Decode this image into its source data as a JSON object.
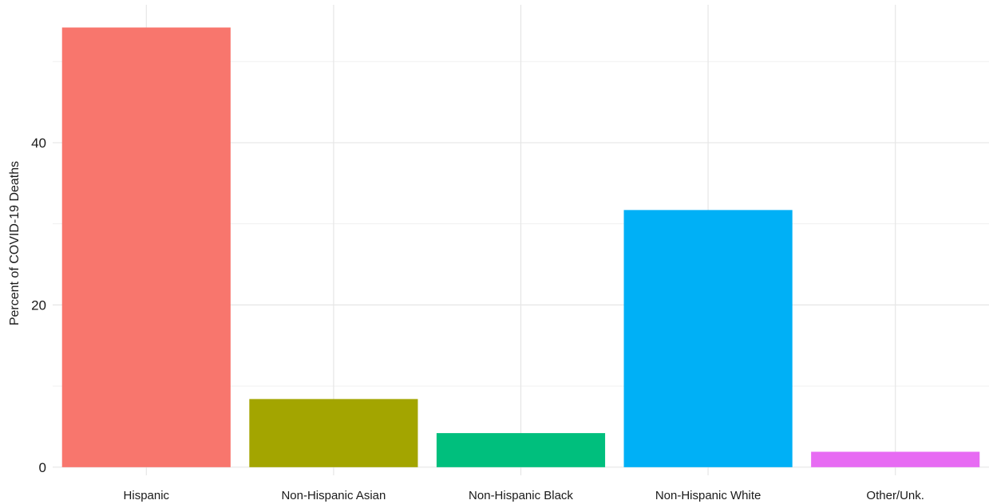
{
  "chart_data": {
    "type": "bar",
    "title": "",
    "xlabel": "",
    "ylabel": "Percent of COVID-19 Deaths",
    "ylim": [
      -1.0,
      57.0
    ],
    "yticks": [
      0,
      20,
      40
    ],
    "grid": true,
    "legend": "none",
    "categories": [
      "Hispanic",
      "Non-Hispanic Asian",
      "Non-Hispanic Black",
      "Non-Hispanic White",
      "Other/Unk."
    ],
    "values": [
      54.2,
      8.4,
      4.2,
      31.7,
      1.9
    ],
    "colors": [
      "#F8766D",
      "#A3A500",
      "#00BF7D",
      "#00B0F6",
      "#E76BF3"
    ]
  }
}
